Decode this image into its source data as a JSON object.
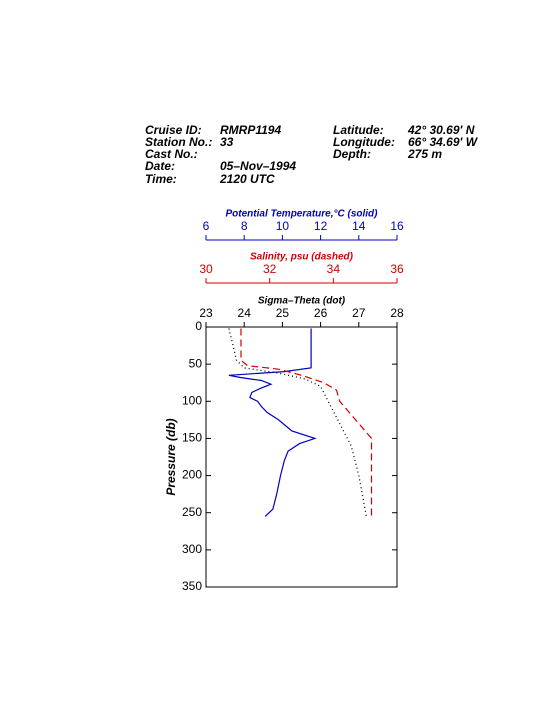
{
  "chart_data": {
    "type": "profile",
    "header_left": [
      {
        "label": "Cruise ID:",
        "value": "RMRP1194"
      },
      {
        "label": "Station No.:",
        "value": "33"
      },
      {
        "label": "Cast No.:"
      },
      {
        "label": "Date:",
        "value": "05–Nov–1994"
      },
      {
        "label": "Time:",
        "value": "2120 UTC"
      }
    ],
    "header_right": [
      {
        "label": "Latitude:",
        "value": "42° 30.69' N"
      },
      {
        "label": "Longitude:",
        "value": "66° 34.69' W"
      },
      {
        "label": "Depth:",
        "value": "275 m"
      }
    ],
    "x_axes": [
      {
        "title": "Potential Temperature,°C (solid)",
        "color": "#0000c0",
        "xlim": [
          6,
          16
        ],
        "xticks": [
          6,
          8,
          10,
          12,
          14,
          16
        ]
      },
      {
        "title": "Salinity, psu  (dashed)",
        "color": "#d00000",
        "xlim": [
          30,
          36
        ],
        "xticks": [
          30,
          32,
          34,
          36
        ]
      },
      {
        "title": "Sigma–Theta (dot)",
        "color": "#000000",
        "xlim": [
          23,
          28
        ],
        "xticks": [
          23,
          24,
          25,
          26,
          27,
          28
        ]
      }
    ],
    "ylabel": "Pressure (db)",
    "ylim": [
      0,
      350
    ],
    "yticks": [
      0,
      50,
      100,
      150,
      200,
      250,
      300,
      350
    ],
    "series": [
      {
        "axis": 0,
        "color": "#0000c0",
        "style": "solid",
        "pressure": [
          2,
          55,
          60,
          65,
          68,
          72,
          77,
          82,
          88,
          95,
          100,
          107,
          115,
          125,
          140,
          150,
          157,
          167,
          180,
          200,
          225,
          245,
          255
        ],
        "values": [
          11.5,
          11.5,
          10.1,
          7.2,
          7.8,
          8.9,
          9.4,
          8.9,
          8.4,
          8.3,
          8.7,
          8.9,
          9.2,
          9.8,
          10.5,
          11.7,
          10.9,
          10.3,
          10.1,
          9.9,
          9.7,
          9.5,
          9.1
        ]
      },
      {
        "axis": 1,
        "color": "#d00000",
        "style": "dashed",
        "pressure": [
          2,
          45,
          52,
          57,
          65,
          75,
          85,
          100,
          120,
          140,
          150,
          170,
          200,
          240,
          255
        ],
        "values": [
          31.1,
          31.1,
          31.3,
          32.3,
          33.0,
          33.7,
          34.1,
          34.2,
          34.6,
          35.0,
          35.2,
          35.2,
          35.2,
          35.2,
          35.2
        ]
      },
      {
        "axis": 2,
        "color": "#000000",
        "style": "dotted",
        "pressure": [
          2,
          45,
          55,
          62,
          70,
          80,
          100,
          130,
          160,
          200,
          255
        ],
        "values": [
          23.6,
          23.8,
          24.0,
          24.9,
          25.6,
          26.0,
          26.2,
          26.5,
          26.8,
          27.0,
          27.2
        ]
      }
    ]
  }
}
